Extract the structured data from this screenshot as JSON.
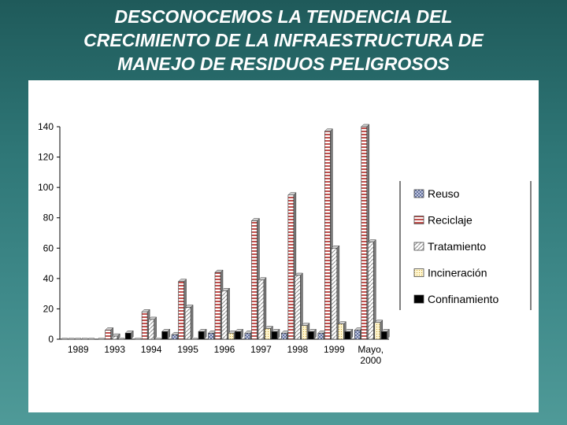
{
  "slide": {
    "title": "DESCONOCEMOS LA TENDENCIA DEL\nCRECIMIENTO DE LA INFRAESTRUCTURA DE\nMANEJO DE RESIDUOS PELIGROSOS"
  },
  "chart_data": {
    "type": "bar",
    "title": "",
    "xlabel": "",
    "ylabel": "",
    "ylim": [
      0,
      140
    ],
    "yticks": [
      0,
      20,
      40,
      60,
      80,
      100,
      120,
      140
    ],
    "grid": false,
    "legend_position": "right",
    "categories": [
      "1989",
      "1993",
      "1994",
      "1995",
      "1996",
      "1997",
      "1998",
      "1999",
      "Mayo,\n2000"
    ],
    "series": [
      {
        "name": "Reuso",
        "color": "#6f7fb0",
        "pattern": "crosshatch",
        "values": [
          0,
          0,
          0,
          3,
          4,
          4,
          4,
          4,
          6
        ]
      },
      {
        "name": "Reciclaje",
        "color": "#c0504d",
        "pattern": "horizontal-stripes",
        "values": [
          0,
          6,
          18,
          38,
          44,
          78,
          95,
          137,
          140
        ]
      },
      {
        "name": "Tratamiento",
        "color": "#bfbfbf",
        "pattern": "diagonal",
        "values": [
          0,
          2,
          13,
          21,
          32,
          39,
          42,
          60,
          64
        ]
      },
      {
        "name": "Incineración",
        "color": "#e8d080",
        "pattern": "dotted",
        "values": [
          0,
          0,
          0,
          0,
          4,
          7,
          9,
          10,
          11
        ]
      },
      {
        "name": "Confinamiento",
        "color": "#000000",
        "pattern": "solid",
        "values": [
          0,
          4,
          5,
          5,
          5,
          5,
          5,
          5,
          5
        ]
      }
    ]
  }
}
